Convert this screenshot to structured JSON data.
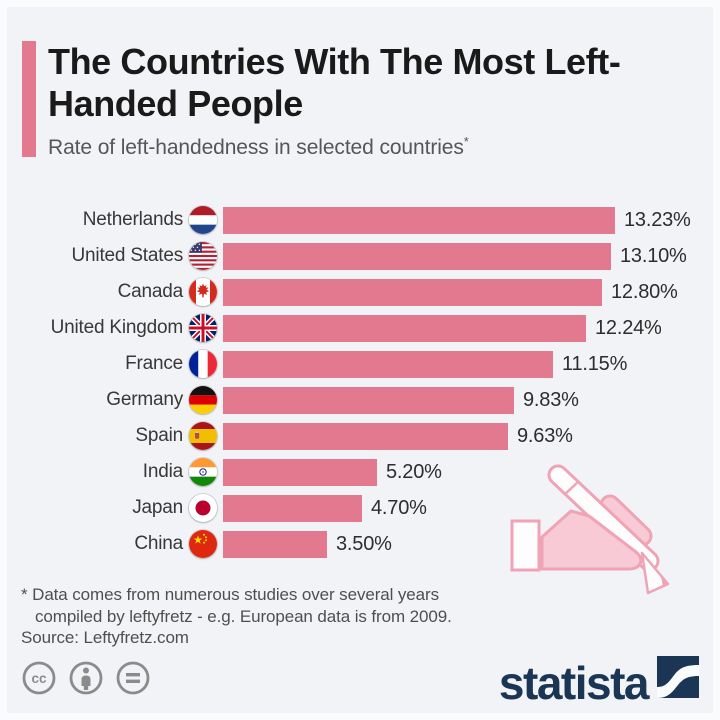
{
  "header": {
    "title": "The Countries With The Most Left-Handed People",
    "subtitle": "Rate of left-handedness in selected countries",
    "footnote_marker": "*"
  },
  "chart_data": {
    "type": "bar",
    "orientation": "horizontal",
    "title": "The Countries With The Most Left-Handed People",
    "subtitle": "Rate of left-handedness in selected countries*",
    "unit": "%",
    "xlim": [
      0,
      13.23
    ],
    "grid": false,
    "legend": false,
    "bar_color": "#e2798f",
    "categories": [
      "Netherlands",
      "United States",
      "Canada",
      "United Kingdom",
      "France",
      "Germany",
      "Spain",
      "India",
      "Japan",
      "China"
    ],
    "values": [
      13.23,
      13.1,
      12.8,
      12.24,
      11.15,
      9.83,
      9.63,
      5.2,
      4.7,
      3.5
    ],
    "value_labels": [
      "13.23%",
      "13.10%",
      "12.80%",
      "12.24%",
      "11.15%",
      "9.83%",
      "9.63%",
      "5.20%",
      "4.70%",
      "3.50%"
    ],
    "flags": [
      "netherlands",
      "united-states",
      "canada",
      "united-kingdom",
      "france",
      "germany",
      "spain",
      "india",
      "japan",
      "china"
    ]
  },
  "illustration": {
    "name": "left-hand-writing-with-pencil",
    "outline_color": "#efa3b5",
    "fill_color": "#f7cad5"
  },
  "footnote": {
    "line1": "* Data comes from numerous studies over several years",
    "line2": "compiled by leftyfretz - e.g. European data is from 2009.",
    "source": "Source: Leftyfretz.com"
  },
  "footer": {
    "license_icons": [
      "cc",
      "by",
      "nd"
    ],
    "brand": "statista"
  },
  "colors": {
    "accent_pink": "#e2798f",
    "background": "#f2f3f6",
    "frame": "#fafbfd",
    "title_text": "#1a1a1a",
    "subtitle_text": "#565656",
    "brand_navy": "#1b3654",
    "license_gray": "#8b8b8b"
  }
}
